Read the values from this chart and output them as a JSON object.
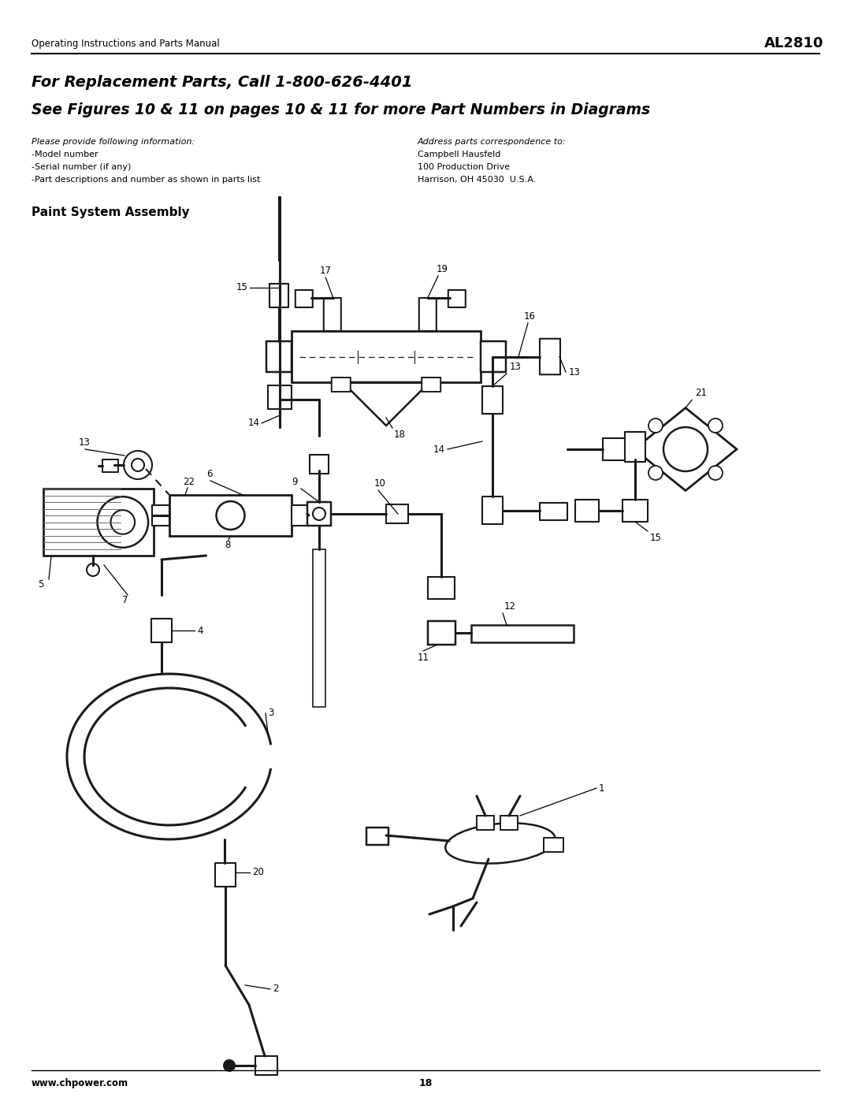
{
  "page_width": 10.8,
  "page_height": 13.97,
  "dpi": 100,
  "bg": "#ffffff",
  "header_left": "Operating Instructions and Parts Manual",
  "header_right": "AL2810",
  "title1": "For Replacement Parts, Call 1-800-626-4401",
  "title2": "See Figures 10 & 11 on pages 10 & 11 for more Part Numbers in Diagrams",
  "info_left_italic": "Please provide following information:",
  "info_left_lines": [
    "-Model number",
    "-Serial number (if any)",
    "-Part descriptions and number as shown in parts list"
  ],
  "info_right_italic": "Address parts correspondence to:",
  "info_right_lines": [
    "Campbell Hausfeld",
    "100 Production Drive",
    "Harrison, OH 45030  U.S.A."
  ],
  "section_title": "Paint System Assembly",
  "footer_left": "www.chpower.com",
  "footer_page": "18"
}
